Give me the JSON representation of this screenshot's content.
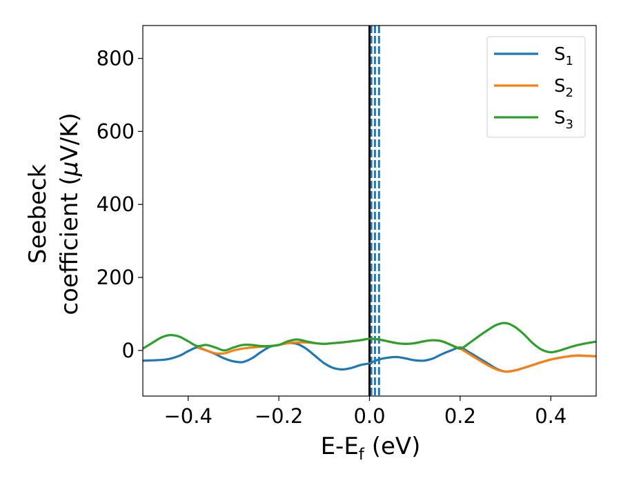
{
  "chart_data": {
    "type": "line",
    "xlabel": {
      "main": "E-E",
      "sub": "f",
      "tail": " (eV)"
    },
    "ylabel": {
      "line1": "Seebeck",
      "line2_prefix": "coefficient  (",
      "line2_mu": "μ",
      "line2_suffix": "V/K)"
    },
    "xlim": [
      -0.5,
      0.5
    ],
    "ylim": [
      -125,
      890
    ],
    "xticks": [
      -0.4,
      -0.2,
      0.0,
      0.2,
      0.4
    ],
    "xtick_labels": [
      "−0.4",
      "−0.2",
      "0.0",
      "0.2",
      "0.4"
    ],
    "yticks": [
      0,
      200,
      400,
      600,
      800
    ],
    "ytick_labels": [
      "0",
      "200",
      "400",
      "600",
      "800"
    ],
    "legend_position": "top-right",
    "vline_solid": {
      "x": 0.0,
      "color": "#000000"
    },
    "vlines_dashed": {
      "x": [
        0.004,
        0.012,
        0.021
      ],
      "color": "#1f77b4"
    },
    "series": [
      {
        "name": "S",
        "sub": "1",
        "color": "#1f77b4",
        "x": [
          -0.5,
          -0.45,
          -0.42,
          -0.4,
          -0.38,
          -0.36,
          -0.34,
          -0.32,
          -0.3,
          -0.28,
          -0.26,
          -0.24,
          -0.22,
          -0.2,
          -0.18,
          -0.16,
          -0.14,
          -0.12,
          -0.1,
          -0.08,
          -0.06,
          -0.04,
          -0.02,
          0.0,
          0.02,
          0.04,
          0.06,
          0.08,
          0.1,
          0.12,
          0.14,
          0.16,
          0.18,
          0.2,
          0.22,
          0.24,
          0.26,
          0.28,
          0.3,
          0.32,
          0.34,
          0.36,
          0.38,
          0.4,
          0.42,
          0.44,
          0.46,
          0.48,
          0.5
        ],
        "y": [
          -28,
          -25,
          -15,
          -2,
          8,
          0,
          -10,
          -22,
          -30,
          -32,
          -22,
          -5,
          10,
          15,
          20,
          18,
          5,
          -15,
          -35,
          -48,
          -52,
          -48,
          -40,
          -35,
          -25,
          -20,
          -18,
          -22,
          -27,
          -28,
          -22,
          -10,
          0,
          8,
          -5,
          -20,
          -35,
          -50,
          -58,
          -55,
          -48,
          -40,
          -32,
          -25,
          -20,
          -16,
          -14,
          -15,
          -16
        ]
      },
      {
        "name": "S",
        "sub": "2",
        "color": "#ff7f0e",
        "x": [
          -0.38,
          -0.36,
          -0.34,
          -0.32,
          -0.3,
          -0.28,
          -0.26,
          -0.24,
          -0.22,
          -0.2,
          -0.18,
          -0.16,
          -0.14,
          -0.12,
          -0.1,
          -0.08,
          -0.06,
          -0.04,
          -0.02,
          0.0,
          0.02,
          0.04,
          0.06,
          0.08,
          0.1,
          0.12,
          0.14,
          0.16,
          0.18,
          0.2,
          0.22,
          0.24,
          0.26,
          0.28,
          0.3,
          0.32,
          0.34,
          0.36,
          0.38,
          0.4,
          0.42,
          0.44,
          0.46,
          0.48,
          0.5
        ],
        "y": [
          8,
          0,
          -8,
          -8,
          0,
          5,
          8,
          10,
          12,
          15,
          20,
          22,
          22,
          20,
          18,
          20,
          22,
          25,
          28,
          32,
          30,
          25,
          20,
          18,
          20,
          25,
          28,
          25,
          15,
          5,
          -10,
          -25,
          -40,
          -52,
          -58,
          -55,
          -48,
          -40,
          -32,
          -25,
          -20,
          -16,
          -14,
          -15,
          -16
        ]
      },
      {
        "name": "S",
        "sub": "3",
        "color": "#2ca02c",
        "x": [
          -0.5,
          -0.48,
          -0.46,
          -0.44,
          -0.42,
          -0.4,
          -0.38,
          -0.36,
          -0.34,
          -0.32,
          -0.3,
          -0.28,
          -0.26,
          -0.24,
          -0.22,
          -0.2,
          -0.18,
          -0.16,
          -0.14,
          -0.12,
          -0.1,
          -0.08,
          -0.06,
          -0.04,
          -0.02,
          0.0,
          0.02,
          0.04,
          0.06,
          0.08,
          0.1,
          0.12,
          0.14,
          0.16,
          0.18,
          0.2,
          0.22,
          0.24,
          0.26,
          0.28,
          0.3,
          0.32,
          0.34,
          0.36,
          0.38,
          0.4,
          0.42,
          0.44,
          0.46,
          0.48,
          0.5
        ],
        "y": [
          5,
          20,
          35,
          42,
          38,
          25,
          12,
          15,
          8,
          0,
          8,
          15,
          15,
          12,
          12,
          15,
          25,
          30,
          25,
          20,
          18,
          20,
          22,
          25,
          28,
          32,
          30,
          25,
          20,
          18,
          20,
          25,
          28,
          25,
          15,
          5,
          20,
          38,
          55,
          70,
          75,
          65,
          45,
          20,
          2,
          -5,
          0,
          8,
          15,
          20,
          24
        ]
      }
    ]
  }
}
